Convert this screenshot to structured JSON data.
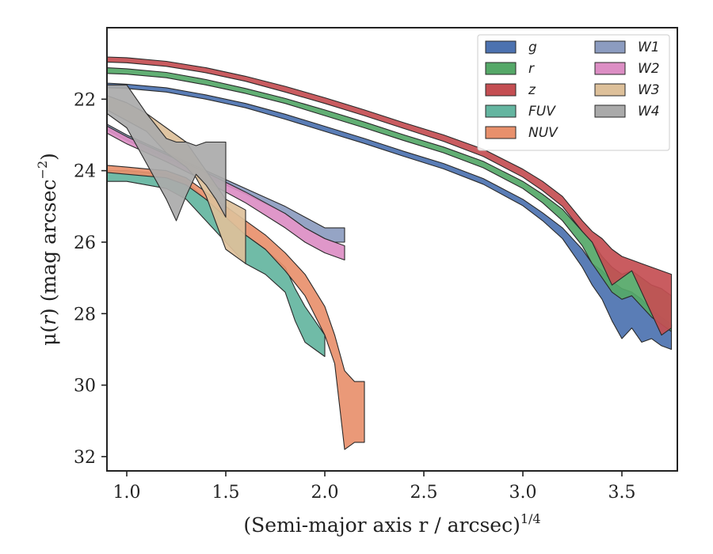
{
  "chart_data": {
    "type": "area",
    "title": "",
    "xlabel": "(Semi-major axis r / arcsec)",
    "xlabel_var": "r",
    "xlabel_sup": "1/4",
    "ylabel_prefix": "μ(",
    "ylabel_var": "r",
    "ylabel_suffix": ") (mag arcsec",
    "ylabel_sup": "−2",
    "ylabel_close": ")",
    "xlim": [
      0.9,
      3.78
    ],
    "ylim": [
      32.4,
      20.0
    ],
    "y_inverted": true,
    "xticks": [
      1.0,
      1.5,
      2.0,
      2.5,
      3.0,
      3.5
    ],
    "xtick_labels": [
      "1.0",
      "1.5",
      "2.0",
      "2.5",
      "3.0",
      "3.5"
    ],
    "yticks": [
      22,
      24,
      26,
      28,
      30,
      32
    ],
    "ytick_labels": [
      "22",
      "24",
      "26",
      "28",
      "30",
      "32"
    ],
    "grid": false,
    "legend": {
      "position": "top-right",
      "columns": 2
    },
    "series": [
      {
        "name": "g",
        "color": "#4c72b0",
        "x": [
          0.9,
          1.0,
          1.2,
          1.4,
          1.6,
          1.8,
          2.0,
          2.2,
          2.4,
          2.6,
          2.8,
          3.0,
          3.1,
          3.2,
          3.3,
          3.35,
          3.4,
          3.45,
          3.5,
          3.55,
          3.6,
          3.65,
          3.7,
          3.75
        ],
        "lo": [
          21.55,
          21.58,
          21.68,
          21.88,
          22.12,
          22.42,
          22.76,
          23.1,
          23.46,
          23.8,
          24.22,
          24.8,
          25.18,
          25.6,
          26.2,
          26.6,
          26.8,
          27.1,
          27.3,
          27.4,
          27.6,
          27.9,
          28.1,
          28.3
        ],
        "hi": [
          21.68,
          21.7,
          21.8,
          22.0,
          22.24,
          22.56,
          22.9,
          23.24,
          23.6,
          23.95,
          24.38,
          24.98,
          25.4,
          25.9,
          26.7,
          27.2,
          27.6,
          28.2,
          28.7,
          28.4,
          28.8,
          28.7,
          28.9,
          29.0
        ]
      },
      {
        "name": "r",
        "color": "#55a868",
        "x": [
          0.9,
          1.0,
          1.2,
          1.4,
          1.6,
          1.8,
          2.0,
          2.2,
          2.4,
          2.6,
          2.8,
          3.0,
          3.1,
          3.2,
          3.3,
          3.35,
          3.4,
          3.45,
          3.5,
          3.55,
          3.6,
          3.65,
          3.7,
          3.75
        ],
        "lo": [
          21.12,
          21.15,
          21.25,
          21.45,
          21.7,
          21.98,
          22.3,
          22.64,
          23.0,
          23.34,
          23.74,
          24.3,
          24.66,
          25.08,
          25.7,
          26.0,
          26.4,
          26.7,
          26.9,
          26.8,
          27.0,
          27.2,
          27.3,
          27.5
        ],
        "hi": [
          21.28,
          21.3,
          21.4,
          21.6,
          21.84,
          22.12,
          22.46,
          22.8,
          23.16,
          23.5,
          23.92,
          24.5,
          24.9,
          25.4,
          26.1,
          26.6,
          27.0,
          27.4,
          27.6,
          27.5,
          27.8,
          28.1,
          28.3,
          28.5
        ]
      },
      {
        "name": "z",
        "color": "#c44e52",
        "x": [
          0.9,
          1.0,
          1.2,
          1.4,
          1.6,
          1.8,
          2.0,
          2.2,
          2.4,
          2.6,
          2.8,
          3.0,
          3.1,
          3.2,
          3.3,
          3.35,
          3.4,
          3.45,
          3.5,
          3.55,
          3.6,
          3.65,
          3.7,
          3.75
        ],
        "lo": [
          20.82,
          20.84,
          20.94,
          21.12,
          21.36,
          21.64,
          21.96,
          22.3,
          22.66,
          23.0,
          23.4,
          23.96,
          24.3,
          24.72,
          25.4,
          25.7,
          25.9,
          26.2,
          26.4,
          26.5,
          26.6,
          26.7,
          26.8,
          26.9
        ],
        "hi": [
          20.96,
          20.98,
          21.08,
          21.26,
          21.5,
          21.8,
          22.12,
          22.46,
          22.82,
          23.18,
          23.6,
          24.18,
          24.56,
          25.0,
          25.7,
          26.0,
          26.6,
          27.2,
          27.0,
          26.8,
          27.4,
          28.0,
          28.6,
          28.4
        ]
      },
      {
        "name": "FUV",
        "color": "#64b5a0",
        "x": [
          0.9,
          1.0,
          1.1,
          1.2,
          1.3,
          1.4,
          1.5,
          1.6,
          1.7,
          1.8,
          1.85,
          1.9,
          1.95,
          2.0
        ],
        "lo": [
          24.0,
          24.0,
          24.05,
          24.1,
          24.3,
          24.8,
          25.3,
          25.8,
          26.2,
          26.7,
          27.3,
          27.8,
          28.2,
          28.6
        ],
        "hi": [
          24.3,
          24.3,
          24.4,
          24.5,
          24.8,
          25.4,
          26.0,
          26.6,
          26.9,
          27.4,
          28.2,
          28.8,
          29.0,
          29.2
        ]
      },
      {
        "name": "NUV",
        "color": "#e8906c",
        "x": [
          0.9,
          1.0,
          1.1,
          1.2,
          1.3,
          1.4,
          1.5,
          1.6,
          1.7,
          1.8,
          1.9,
          2.0,
          2.05,
          2.1,
          2.15,
          2.2
        ],
        "lo": [
          23.85,
          23.9,
          23.95,
          24.0,
          24.2,
          24.6,
          25.0,
          25.4,
          25.8,
          26.3,
          26.9,
          27.8,
          28.6,
          29.6,
          29.9,
          29.9
        ],
        "hi": [
          24.05,
          24.1,
          24.15,
          24.2,
          24.4,
          24.8,
          25.3,
          25.8,
          26.2,
          26.8,
          27.5,
          28.6,
          29.4,
          31.8,
          31.6,
          31.6
        ]
      },
      {
        "name": "W1",
        "color": "#8c9cc0",
        "x": [
          0.9,
          1.0,
          1.2,
          1.4,
          1.6,
          1.8,
          1.9,
          2.0,
          2.05,
          2.1
        ],
        "lo": [
          22.7,
          23.0,
          23.5,
          24.0,
          24.5,
          25.0,
          25.3,
          25.6,
          25.6,
          25.6
        ],
        "hi": [
          22.85,
          23.15,
          23.65,
          24.15,
          24.65,
          25.2,
          25.6,
          25.9,
          26.0,
          26.0
        ]
      },
      {
        "name": "W2",
        "color": "#dc8ec4",
        "x": [
          0.9,
          1.0,
          1.2,
          1.4,
          1.6,
          1.8,
          1.9,
          2.0,
          2.05,
          2.1
        ],
        "lo": [
          22.75,
          23.05,
          23.55,
          24.05,
          24.6,
          25.2,
          25.6,
          25.9,
          26.0,
          26.1
        ],
        "hi": [
          22.95,
          23.25,
          23.75,
          24.3,
          24.9,
          25.6,
          26.0,
          26.3,
          26.4,
          26.5
        ]
      },
      {
        "name": "W3",
        "color": "#ddc09a",
        "x": [
          0.9,
          1.0,
          1.1,
          1.2,
          1.3,
          1.35,
          1.4,
          1.5,
          1.6
        ],
        "lo": [
          21.9,
          22.1,
          22.4,
          22.8,
          23.2,
          23.6,
          24.0,
          24.8,
          25.1
        ],
        "hi": [
          22.3,
          22.6,
          22.9,
          23.5,
          23.9,
          24.2,
          24.7,
          26.2,
          26.6
        ]
      },
      {
        "name": "W4",
        "color": "#aaaaaa",
        "x": [
          0.9,
          1.0,
          1.1,
          1.2,
          1.25,
          1.3,
          1.35,
          1.4,
          1.45,
          1.5
        ],
        "lo": [
          21.6,
          21.6,
          22.4,
          23.1,
          23.2,
          23.2,
          23.3,
          23.2,
          23.2,
          23.2
        ],
        "hi": [
          22.4,
          22.8,
          23.8,
          24.8,
          25.4,
          24.7,
          24.1,
          24.4,
          24.8,
          25.3
        ]
      }
    ]
  }
}
